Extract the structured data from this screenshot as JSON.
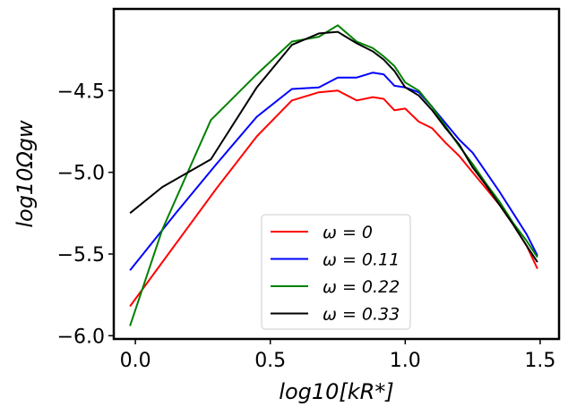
{
  "chart_data": {
    "type": "line",
    "title": "",
    "xlabel": "log10[kR*]",
    "ylabel": "log10Ωgw",
    "xlim": [
      -0.08,
      1.57
    ],
    "ylim": [
      -6.02,
      -4.0
    ],
    "xticks": [
      0.0,
      0.5,
      1.0,
      1.5
    ],
    "xtick_labels": [
      "0.0",
      "0.5",
      "1.0",
      "1.5"
    ],
    "yticks": [
      -6.0,
      -5.5,
      -5.0,
      -4.5
    ],
    "ytick_labels": [
      "−6.0",
      "−5.5",
      "−5.0",
      "−4.5"
    ],
    "grid": false,
    "legend_position": "lower-center",
    "series": [
      {
        "name": "ω = 0",
        "color": "#ff0000",
        "x": [
          -0.02,
          0.1,
          0.3,
          0.45,
          0.58,
          0.68,
          0.75,
          0.82,
          0.88,
          0.92,
          0.96,
          1.0,
          1.05,
          1.1,
          1.15,
          1.2,
          1.25,
          1.3,
          1.35,
          1.4,
          1.45,
          1.49
        ],
        "y": [
          -5.82,
          -5.55,
          -5.1,
          -4.78,
          -4.56,
          -4.51,
          -4.5,
          -4.56,
          -4.54,
          -4.55,
          -4.62,
          -4.61,
          -4.69,
          -4.73,
          -4.82,
          -4.9,
          -5.0,
          -5.1,
          -5.2,
          -5.32,
          -5.45,
          -5.59
        ]
      },
      {
        "name": "ω = 0.11",
        "color": "#0000ff",
        "x": [
          -0.02,
          0.15,
          0.3,
          0.45,
          0.58,
          0.68,
          0.75,
          0.82,
          0.88,
          0.92,
          0.96,
          1.0,
          1.05,
          1.1,
          1.15,
          1.2,
          1.25,
          1.3,
          1.35,
          1.4,
          1.45,
          1.49
        ],
        "y": [
          -5.6,
          -5.25,
          -4.95,
          -4.66,
          -4.49,
          -4.48,
          -4.42,
          -4.42,
          -4.39,
          -4.4,
          -4.47,
          -4.48,
          -4.51,
          -4.6,
          -4.7,
          -4.8,
          -4.88,
          -5.0,
          -5.12,
          -5.25,
          -5.38,
          -5.51
        ]
      },
      {
        "name": "ω = 0.22",
        "color": "#008000",
        "x": [
          -0.02,
          0.1,
          0.28,
          0.45,
          0.58,
          0.68,
          0.75,
          0.82,
          0.88,
          0.92,
          0.96,
          1.0,
          1.05,
          1.1,
          1.15,
          1.2,
          1.25,
          1.3,
          1.35,
          1.4,
          1.45,
          1.49
        ],
        "y": [
          -5.94,
          -5.35,
          -4.68,
          -4.4,
          -4.2,
          -4.17,
          -4.1,
          -4.2,
          -4.24,
          -4.29,
          -4.35,
          -4.45,
          -4.5,
          -4.6,
          -4.72,
          -4.84,
          -4.95,
          -5.07,
          -5.18,
          -5.31,
          -5.42,
          -5.52
        ]
      },
      {
        "name": "ω = 0.33",
        "color": "#000000",
        "x": [
          -0.02,
          0.1,
          0.28,
          0.45,
          0.58,
          0.68,
          0.75,
          0.82,
          0.88,
          0.92,
          0.96,
          1.0,
          1.05,
          1.1,
          1.15,
          1.2,
          1.25,
          1.3,
          1.35,
          1.4,
          1.45,
          1.49
        ],
        "y": [
          -5.25,
          -5.09,
          -4.92,
          -4.48,
          -4.22,
          -4.15,
          -4.14,
          -4.21,
          -4.26,
          -4.31,
          -4.38,
          -4.48,
          -4.53,
          -4.62,
          -4.73,
          -4.83,
          -4.97,
          -5.08,
          -5.2,
          -5.32,
          -5.45,
          -5.55
        ]
      }
    ]
  }
}
